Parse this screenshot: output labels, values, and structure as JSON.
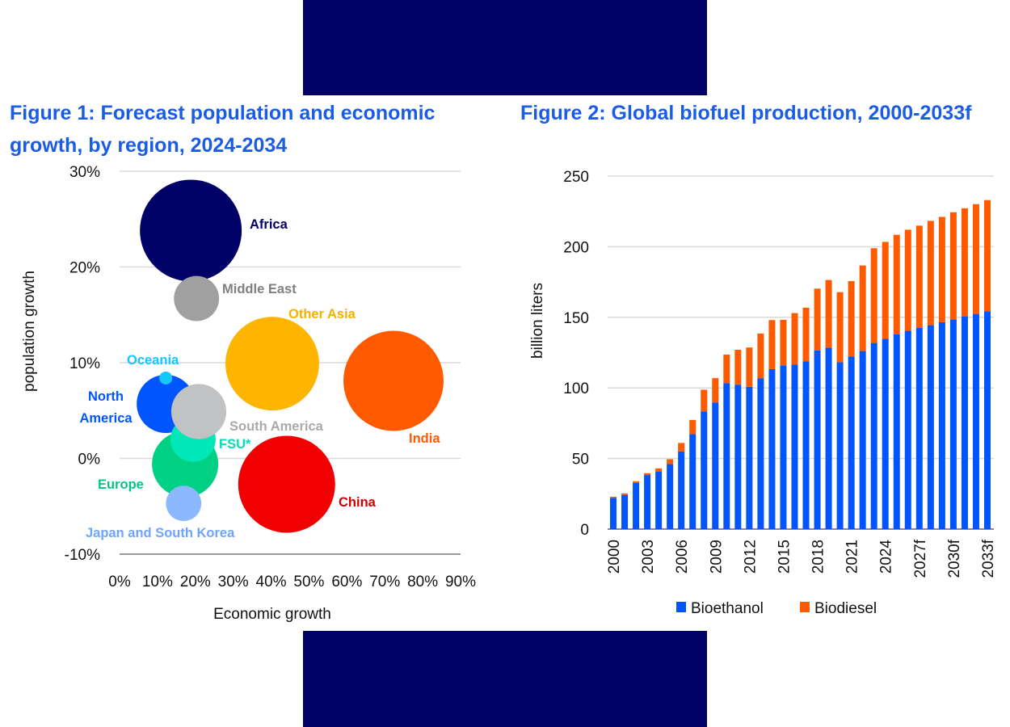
{
  "colors": {
    "banner": "#000066",
    "title": "#1a5ce6",
    "bioethanol": "#0055ff",
    "biodiesel": "#ff5a00"
  },
  "figure1": {
    "title_line1": "Figure 1: Forecast population and economic",
    "title_line2": "growth, by region, 2024-2034"
  },
  "figure2": {
    "title": "Figure 2: Global biofuel production, 2000-2033f"
  },
  "chart_data": [
    {
      "type": "scatter",
      "subtype": "bubble",
      "xlabel": "Economic growth",
      "ylabel": "population growth",
      "xlim": [
        0,
        90
      ],
      "ylim": [
        -10,
        30
      ],
      "x_ticks": [
        "0%",
        "10%",
        "20%",
        "30%",
        "40%",
        "50%",
        "60%",
        "70%",
        "80%",
        "90%"
      ],
      "y_ticks": [
        "30%",
        "20%",
        "10%",
        "0%",
        "-10%"
      ],
      "grid": "horizontal",
      "points": [
        {
          "label": "Africa",
          "x": 18.8,
          "y": 23.8,
          "size": 39.7,
          "color": "#000066"
        },
        {
          "label": "Middle East",
          "x": 20.3,
          "y": 16.7,
          "size": 7.8,
          "color": "#a0a0a0",
          "label_color": "#808080"
        },
        {
          "label": "Other Asia",
          "x": 40.3,
          "y": 9.9,
          "size": 33.6,
          "color": "#ffb400",
          "label_color": "#f5b000"
        },
        {
          "label": "India",
          "x": 72.3,
          "y": 8.1,
          "size": 38.4,
          "color": "#ff5a00",
          "label_color": "#ff5a00"
        },
        {
          "label": "North America",
          "x": 12.2,
          "y": 5.7,
          "size": 13.0,
          "color": "#0055ff",
          "label_color": "#0055ff"
        },
        {
          "label": "Oceania",
          "x": 12.2,
          "y": 8.4,
          "size": 0.64,
          "color": "#12c8ff",
          "label_color": "#12c8ff"
        },
        {
          "label": "Europe",
          "x": 17.3,
          "y": -0.6,
          "size": 16.8,
          "color": "#00d084",
          "label_color": "#00c880"
        },
        {
          "label": "FSU*",
          "x": 19.4,
          "y": 2.0,
          "size": 7.8,
          "color": "#00e8b8",
          "label_color": "#00e0b4"
        },
        {
          "label": "South America",
          "x": 20.9,
          "y": 4.9,
          "size": 11.6,
          "color": "#c0c2c4",
          "label_color": "#a8aaac"
        },
        {
          "label": "Japan and South Korea",
          "x": 16.9,
          "y": -4.7,
          "size": 4.8,
          "color": "#8cb8ff",
          "label_color": "#6ea4ff"
        },
        {
          "label": "China",
          "x": 44.1,
          "y": -2.7,
          "size": 36.0,
          "color": "#f00000",
          "label_color": "#d00000"
        }
      ]
    },
    {
      "type": "bar",
      "stacked": true,
      "ylabel": "billion liters",
      "ylim": [
        0,
        250
      ],
      "y_ticks": [
        0,
        50,
        100,
        150,
        200,
        250
      ],
      "grid": "horizontal",
      "legend": "bottom",
      "categories": [
        "2000",
        "2001",
        "2002",
        "2003",
        "2004",
        "2005",
        "2006",
        "2007",
        "2008",
        "2009",
        "2010",
        "2011",
        "2012",
        "2013",
        "2014",
        "2015",
        "2016",
        "2017",
        "2018",
        "2019",
        "2020",
        "2021",
        "2022",
        "2023",
        "2024",
        "2025",
        "2026",
        "2027f",
        "2028f",
        "2029f",
        "2030f",
        "2031f",
        "2032f",
        "2033f"
      ],
      "x_tick_labels": [
        "2000",
        "2003",
        "2006",
        "2009",
        "2012",
        "2015",
        "2018",
        "2021",
        "2024",
        "2027f",
        "2030f",
        "2033f"
      ],
      "series": [
        {
          "name": "Bioethanol",
          "color": "#0055ff",
          "values": [
            22.1,
            24.2,
            32.6,
            38.3,
            40.6,
            46.1,
            55.0,
            67.2,
            83.4,
            89.7,
            103.4,
            102.3,
            100.8,
            106.7,
            113.3,
            116.0,
            116.6,
            118.7,
            126.5,
            128.4,
            118.1,
            122.3,
            126.1,
            131.8,
            134.7,
            137.9,
            140.4,
            142.5,
            144.4,
            146.5,
            148.4,
            150.7,
            152.4,
            154.3
          ]
        },
        {
          "name": "Biodiesel",
          "color": "#ff5a00",
          "values": [
            0.8,
            1.1,
            1.3,
            1.3,
            2.4,
            3.4,
            6.0,
            10.1,
            15.3,
            17.2,
            20.2,
            24.7,
            27.8,
            31.8,
            34.7,
            32.2,
            36.4,
            38.1,
            43.8,
            48.0,
            49.7,
            53.3,
            60.6,
            67.1,
            68.7,
            70.5,
            71.6,
            72.4,
            73.9,
            74.6,
            76.0,
            76.5,
            77.7,
            78.7
          ]
        }
      ]
    }
  ]
}
